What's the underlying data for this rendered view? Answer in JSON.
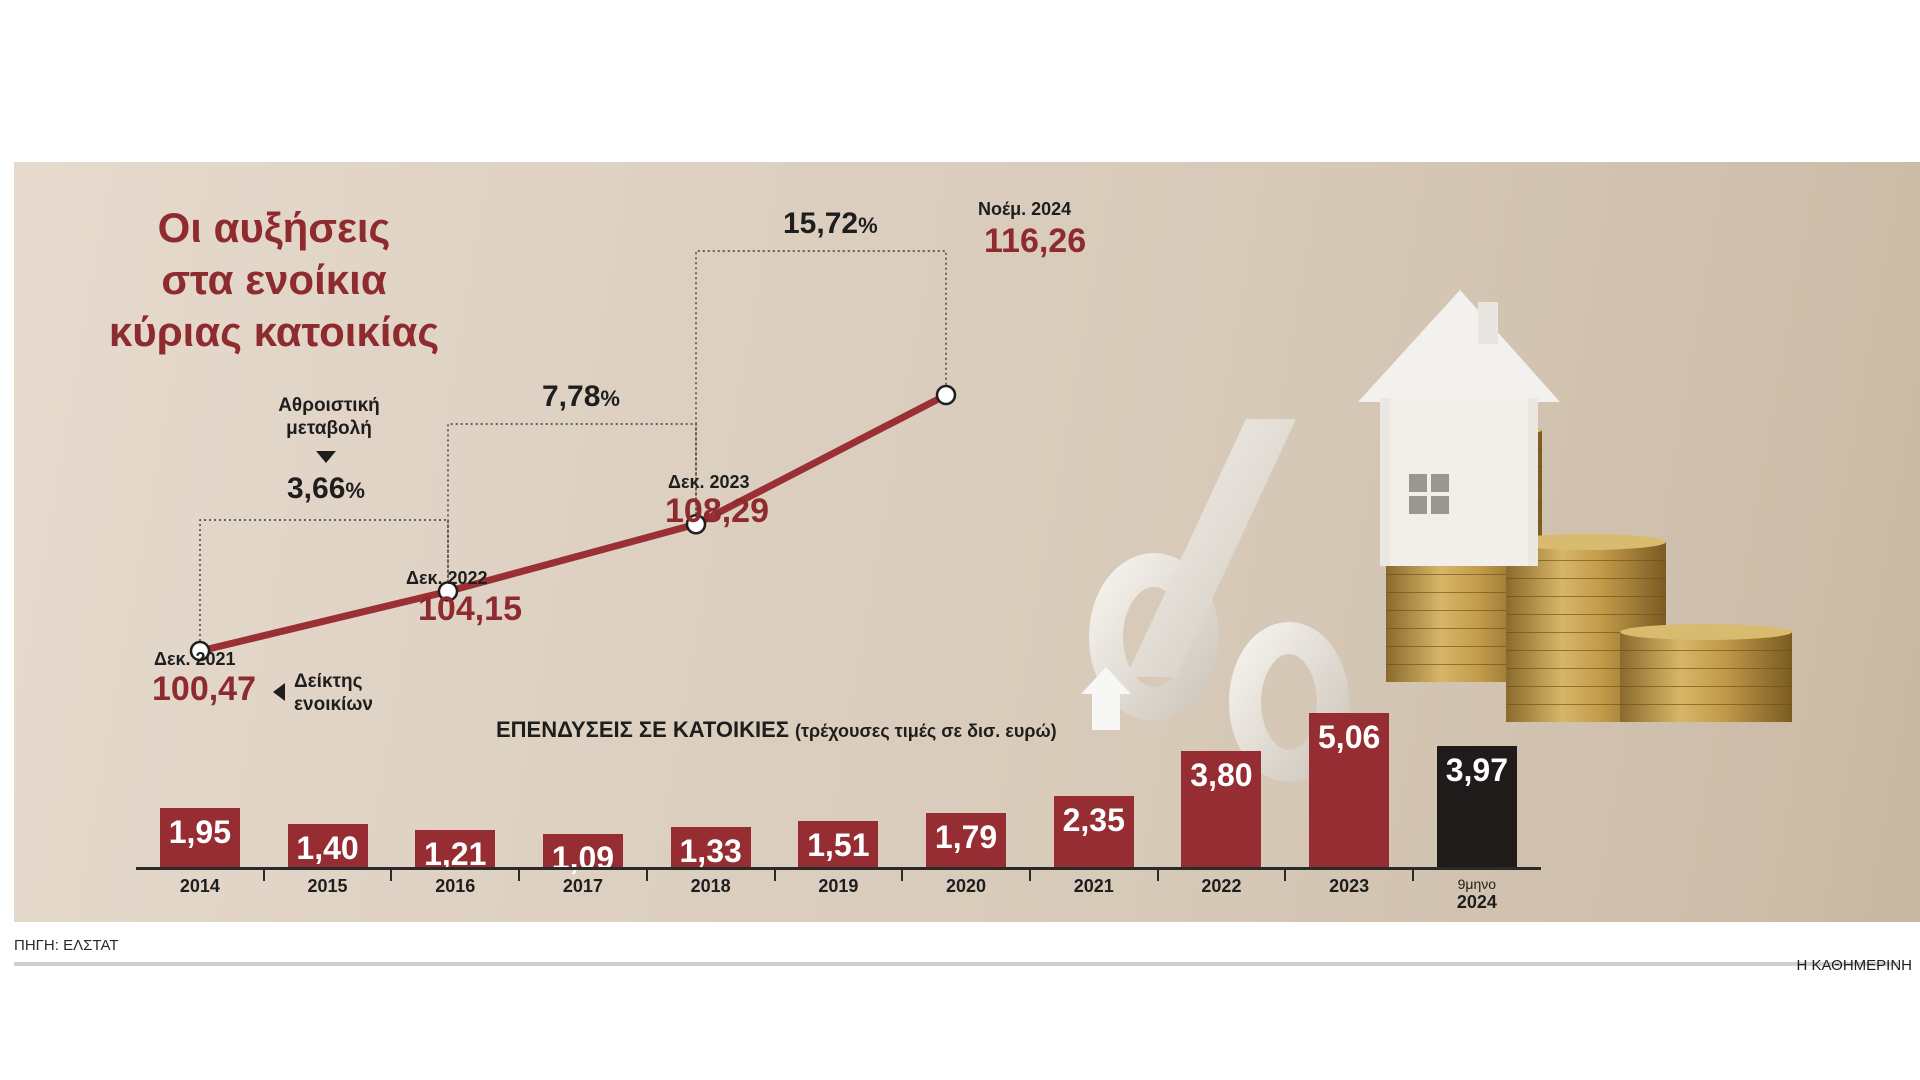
{
  "title": {
    "line1": "Οι αυξήσεις",
    "line2": "στα ενοίκια",
    "line3": "κύριας κατοικίας"
  },
  "chart_data": [
    {
      "type": "line",
      "title": "Οι αυξήσεις στα ενοίκια κύριας κατοικίας",
      "series": [
        {
          "name": "Δείκτης ενοικίων",
          "points": [
            {
              "label": "Δεκ. 2021",
              "value": 100.47,
              "display": "100,47"
            },
            {
              "label": "Δεκ. 2022",
              "value": 104.15,
              "display": "104,15"
            },
            {
              "label": "Δεκ. 2023",
              "value": 108.29,
              "display": "108,29"
            },
            {
              "label": "Νοέμ. 2024",
              "value": 116.26,
              "display": "116,26"
            }
          ]
        }
      ],
      "cumulative_changes": [
        {
          "from": "Δεκ. 2021",
          "to": "Δεκ. 2022",
          "value": 3.66,
          "display": "3,66"
        },
        {
          "from": "Δεκ. 2021",
          "to": "Δεκ. 2023",
          "value": 7.78,
          "display": "7,78"
        },
        {
          "from": "Δεκ. 2021",
          "to": "Νοέμ. 2024",
          "value": 15.72,
          "display": "15,72"
        }
      ],
      "percent_unit": "%",
      "annotations": {
        "cumulative_label_1": "Αθροιστική",
        "cumulative_label_2": "μεταβολή",
        "index_label_1": "Δείκτης",
        "index_label_2": "ενοικίων"
      }
    },
    {
      "type": "bar",
      "title": "ΕΠΕΝΔΥΣΕΙΣ ΣΕ ΚΑΤΟΙΚΙΕΣ",
      "subtitle": "(τρέχουσες τιμές σε δισ. ευρώ)",
      "categories": [
        "2014",
        "2015",
        "2016",
        "2017",
        "2018",
        "2019",
        "2020",
        "2021",
        "2022",
        "2023",
        "2024"
      ],
      "category_prefix": {
        "2024": "9μηνο"
      },
      "values": [
        1.95,
        1.4,
        1.21,
        1.09,
        1.33,
        1.51,
        1.79,
        2.35,
        3.8,
        5.06,
        3.97
      ],
      "value_labels": [
        "1,95",
        "1,40",
        "1,21",
        "1,09",
        "1,33",
        "1,51",
        "1,79",
        "2,35",
        "3,80",
        "5,06",
        "3,97"
      ],
      "highlight_last": true,
      "colors": {
        "bar": "#952d32",
        "last_bar": "#1f1b1b"
      }
    }
  ],
  "footer": {
    "source": "ΠΗΓΗ: ΕΛΣΤΑΤ",
    "brand": "Η ΚΑΘΗΜΕΡΙΝΗ"
  },
  "colors": {
    "accent": "#8e2b2f",
    "line": "#9a2f34"
  }
}
